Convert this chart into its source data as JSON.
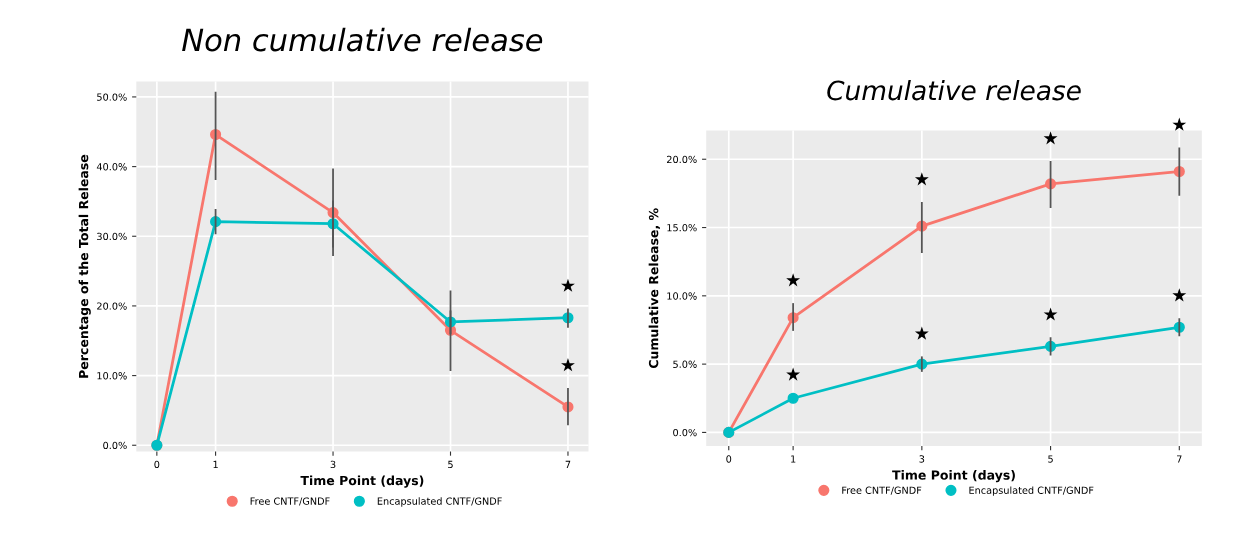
{
  "chart_data": [
    {
      "type": "line",
      "title": "Non cumulative release",
      "xlabel": "Time Point (days)",
      "ylabel": "Percentage of the Total Release",
      "x": [
        0,
        1,
        3,
        5,
        7
      ],
      "xlim": [
        -0.35,
        7.35
      ],
      "xticks": [
        0,
        1,
        3,
        5,
        7
      ],
      "ylim": [
        -0.9,
        52.2
      ],
      "yticks": [
        {
          "value": 0,
          "label": "0.0%"
        },
        {
          "value": 10,
          "label": "10.0%"
        },
        {
          "value": 20,
          "label": "20.0%"
        },
        {
          "value": 30,
          "label": "30.0%"
        },
        {
          "value": 40,
          "label": "40.0%"
        },
        {
          "value": 50,
          "label": "50.0%"
        }
      ],
      "grid": true,
      "legend": "bottom",
      "marker": "circle",
      "line_style": "solid",
      "series": [
        {
          "name": "Free CNTF/GNDF",
          "color": "#f8766d",
          "values": [
            0,
            44.6,
            33.4,
            16.5,
            5.5
          ],
          "errors": [
            null,
            [
              38.2,
              50.6
            ],
            [
              27.3,
              39.6
            ],
            [
              10.8,
              22.1
            ],
            [
              3.0,
              8.1
            ]
          ]
        },
        {
          "name": "Encapsulated CNTF/GNDF",
          "color": "#00bfc4",
          "values": [
            0,
            32.1,
            31.8,
            17.7,
            18.3
          ],
          "errors": [
            null,
            [
              30.4,
              33.8
            ],
            [
              28.5,
              35.0
            ],
            [
              16.1,
              19.2
            ],
            [
              17.0,
              19.5
            ]
          ]
        }
      ],
      "annotations": [
        {
          "text": "★",
          "x": 7,
          "y": 18.3
        },
        {
          "text": "★",
          "x": 7,
          "y": 5.5
        }
      ]
    },
    {
      "type": "line",
      "title": "Cumulative release",
      "xlabel": "Time Point (days)",
      "ylabel": "Cumulative Release, %",
      "x": [
        0,
        1,
        3,
        5,
        7
      ],
      "xlim": [
        -0.35,
        7.35
      ],
      "xticks": [
        0,
        1,
        3,
        5,
        7
      ],
      "ylim": [
        -1.0,
        22.1
      ],
      "yticks": [
        {
          "value": 0,
          "label": "0.0%"
        },
        {
          "value": 5,
          "label": "5.0%"
        },
        {
          "value": 10,
          "label": "10.0%"
        },
        {
          "value": 15,
          "label": "15.0%"
        },
        {
          "value": 20,
          "label": "20.0%"
        }
      ],
      "grid": true,
      "legend": "bottom",
      "marker": "circle",
      "line_style": "solid",
      "series": [
        {
          "name": "Free CNTF/GNDF",
          "color": "#f8766d",
          "values": [
            0,
            8.4,
            15.1,
            18.2,
            19.1
          ],
          "errors": [
            null,
            [
              7.5,
              9.4
            ],
            [
              13.2,
              16.8
            ],
            [
              16.5,
              19.8
            ],
            [
              17.4,
              20.8
            ]
          ]
        },
        {
          "name": "Encapsulated CNTF/GNDF",
          "color": "#00bfc4",
          "values": [
            0,
            2.5,
            5.0,
            6.3,
            7.7
          ],
          "errors": [
            null,
            null,
            [
              4.5,
              5.5
            ],
            [
              5.7,
              6.9
            ],
            [
              7.1,
              8.3
            ]
          ]
        }
      ],
      "annotations": [
        {
          "text": "★",
          "x": 1,
          "y": 8.4
        },
        {
          "text": "★",
          "x": 3,
          "y": 15.1
        },
        {
          "text": "★",
          "x": 5,
          "y": 18.2
        },
        {
          "text": "★",
          "x": 7,
          "y": 19.1
        },
        {
          "text": "★",
          "x": 1,
          "y": 2.5
        },
        {
          "text": "★",
          "x": 3,
          "y": 5.0
        },
        {
          "text": "★",
          "x": 5,
          "y": 6.3
        },
        {
          "text": "★",
          "x": 7,
          "y": 7.7
        }
      ]
    }
  ]
}
